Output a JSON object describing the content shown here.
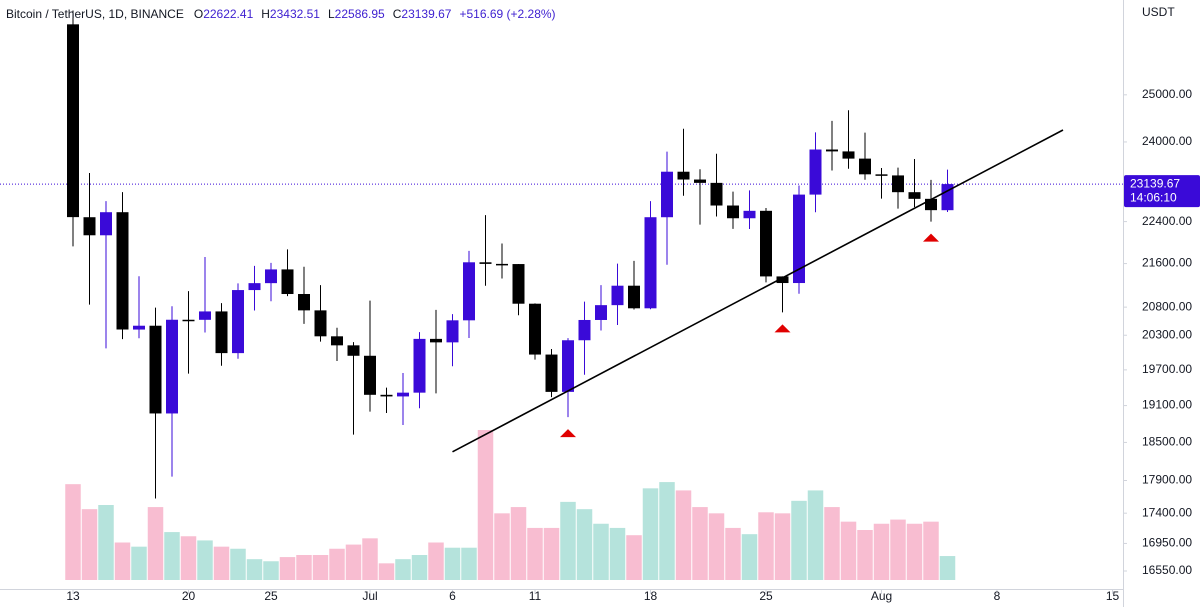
{
  "chart_data": {
    "type": "candlestick",
    "title": "Bitcoin / TetherUS, 1D, BINANCE",
    "ohlc_prefixes": [
      "O",
      "H",
      "L",
      "C"
    ],
    "change_label": "+516.69 (+2.28%)",
    "price_unit": "USDT",
    "countdown": "14:06:10",
    "log_scale": true,
    "up_color": "#3a0ad8",
    "down_color": "#000000",
    "volume_up_color": "#b5e3dc",
    "volume_down_color": "#f8bdd1",
    "dates": [
      "06-13",
      "06-14",
      "06-15",
      "06-16",
      "06-17",
      "06-18",
      "06-19",
      "06-20",
      "06-21",
      "06-22",
      "06-23",
      "06-24",
      "06-25",
      "06-26",
      "06-27",
      "06-28",
      "06-29",
      "06-30",
      "07-01",
      "07-02",
      "07-03",
      "07-04",
      "07-05",
      "07-06",
      "07-07",
      "07-08",
      "07-09",
      "07-10",
      "07-11",
      "07-12",
      "07-13",
      "07-14",
      "07-15",
      "07-16",
      "07-17",
      "07-18",
      "07-19",
      "07-20",
      "07-21",
      "07-22",
      "07-23",
      "07-24",
      "07-25",
      "07-26",
      "07-27",
      "07-28",
      "07-29",
      "07-30",
      "07-31",
      "08-01",
      "08-02",
      "08-03",
      "08-04",
      "08-05"
    ],
    "open": [
      26574,
      22485,
      22136,
      22583,
      20400,
      20468,
      18970,
      20574,
      20573,
      20723,
      19988,
      21110,
      21237,
      21491,
      21038,
      20742,
      20281,
      20123,
      19942,
      19279,
      19252,
      19315,
      20236,
      20175,
      20564,
      21624,
      21594,
      21591,
      20862,
      19963,
      19328,
      20212,
      20570,
      20836,
      21190,
      20779,
      22485,
      23389,
      23231,
      23164,
      22714,
      22465,
      22610,
      21361,
      21239,
      22930,
      23843,
      23804,
      23656,
      23336,
      23314,
      22978,
      22846,
      22622.41
    ],
    "high": [
      26895,
      23362,
      22800,
      22980,
      21365,
      20792,
      20815,
      21090,
      21723,
      20873,
      21233,
      21558,
      21614,
      21868,
      21540,
      21200,
      20432,
      20179,
      20918,
      19400,
      19647,
      20354,
      20750,
      20675,
      21838,
      22527,
      21980,
      21591,
      20868,
      20060,
      20250,
      20900,
      21200,
      21600,
      21650,
      22800,
      23800,
      24276,
      23440,
      23756,
      22990,
      23014,
      22666,
      21361,
      23112,
      24200,
      24442,
      24668,
      24194,
      23464,
      23471,
      23647,
      23223,
      23432.51
    ],
    "low": [
      21925,
      20846,
      20071,
      20232,
      20246,
      17622,
      17960,
      19637,
      20348,
      19770,
      19890,
      20740,
      20906,
      21000,
      20500,
      20188,
      19852,
      18626,
      19000,
      18977,
      18781,
      19055,
      19304,
      19761,
      20251,
      21189,
      21322,
      20655,
      19875,
      19240,
      18910,
      19616,
      20384,
      20480,
      20758,
      20762,
      21579,
      22906,
      22341,
      22500,
      22260,
      22257,
      21250,
      20706,
      21042,
      22582,
      23414,
      23450,
      23227,
      22850,
      22654,
      22683,
      22400,
      22586.95
    ],
    "close": [
      22487,
      22136,
      22583,
      20401,
      20468,
      18970,
      20574,
      20573,
      20723,
      19988,
      21110,
      21237,
      21491,
      21038,
      20742,
      20281,
      20123,
      19942,
      19279,
      19252,
      19315,
      20236,
      20175,
      20564,
      21624,
      21594,
      21591,
      20862,
      19963,
      19328,
      20212,
      20570,
      20836,
      21190,
      20779,
      22485,
      23389,
      23231,
      23164,
      22714,
      22465,
      22610,
      21361,
      21239,
      22930,
      23843,
      23804,
      23656,
      23336,
      23314,
      22978,
      22846,
      22622.98,
      23139.67
    ],
    "volume": [
      184000,
      136000,
      144000,
      72000,
      64000,
      140000,
      92000,
      84000,
      76000,
      64000,
      60000,
      40000,
      36000,
      44000,
      48000,
      48000,
      60000,
      68000,
      80000,
      32000,
      40000,
      48000,
      72000,
      62000,
      62000,
      288000,
      128000,
      140000,
      100000,
      100000,
      150000,
      136000,
      108000,
      100000,
      86000,
      176000,
      188000,
      172000,
      140000,
      128000,
      100000,
      88000,
      130000,
      128000,
      152000,
      172000,
      140000,
      112000,
      96000,
      108000,
      116000,
      108000,
      112000,
      46000
    ],
    "ylim": [
      16280,
      27140
    ],
    "yticks": [
      {
        "value": 16550,
        "label": "16550.00"
      },
      {
        "value": 16950,
        "label": "16950.00"
      },
      {
        "value": 17400,
        "label": "17400.00"
      },
      {
        "value": 17900,
        "label": "17900.00"
      },
      {
        "value": 18500,
        "label": "18500.00"
      },
      {
        "value": 19100,
        "label": "19100.00"
      },
      {
        "value": 19700,
        "label": "19700.00"
      },
      {
        "value": 20300,
        "label": "20300.00"
      },
      {
        "value": 20800,
        "label": "20800.00"
      },
      {
        "value": 21600,
        "label": "21600.00"
      },
      {
        "value": 22400,
        "label": "22400.00"
      },
      {
        "value": 24000,
        "label": "24000.00"
      },
      {
        "value": 25000,
        "label": "25000.00"
      }
    ],
    "xticks": [
      {
        "value": "06-13",
        "label": "13"
      },
      {
        "value": "06-20",
        "label": "20"
      },
      {
        "value": "06-25",
        "label": "25"
      },
      {
        "value": "07-01",
        "label": "Jul"
      },
      {
        "value": "07-06",
        "label": "6"
      },
      {
        "value": "07-11",
        "label": "11"
      },
      {
        "value": "07-18",
        "label": "18"
      },
      {
        "value": "07-25",
        "label": "25"
      },
      {
        "value": "08-01",
        "label": "Aug"
      },
      {
        "value": "08-08",
        "label": "8"
      },
      {
        "value": "08-15",
        "label": "15"
      }
    ],
    "trendline": {
      "start": {
        "date": "07-06",
        "price": 18350
      },
      "end": {
        "date": "08-12",
        "price": 24250
      },
      "color": "#000000"
    },
    "markers": {
      "dates": [
        "07-13",
        "07-26",
        "08-04"
      ],
      "color": "#e00000"
    }
  }
}
